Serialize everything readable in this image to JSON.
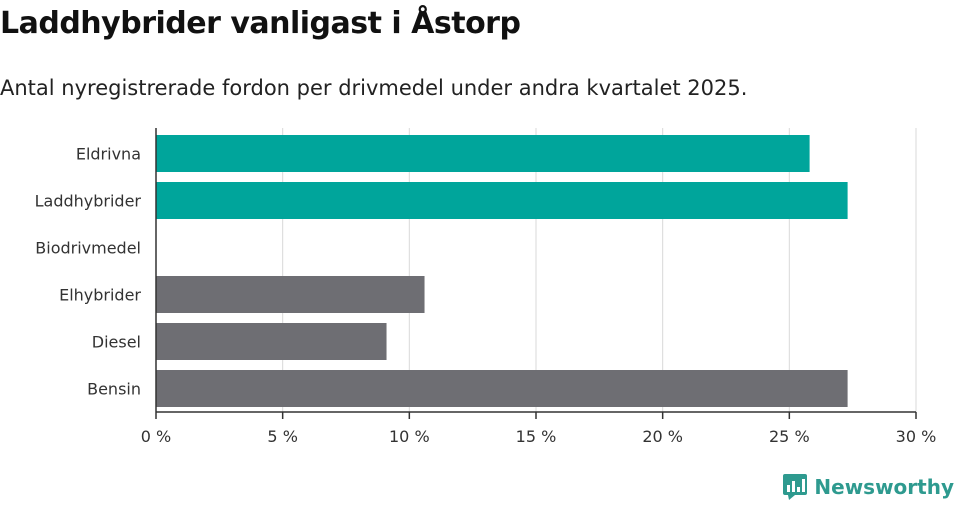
{
  "header": {
    "title": "Laddhybrider vanligast i Åstorp",
    "subtitle": "Antal nyregistrerade fordon per drivmedel under andra kvartalet 2025."
  },
  "brand": {
    "name": "Newsworthy"
  },
  "colors": {
    "highlight": "#00a59b",
    "default": "#6e6e73",
    "grid": "#d9d9d9",
    "axis": "#333333"
  },
  "chart_data": {
    "type": "bar",
    "orientation": "horizontal",
    "categories": [
      "Eldrivna",
      "Laddhybrider",
      "Biodrivmedel",
      "Elhybrider",
      "Diesel",
      "Bensin"
    ],
    "values": [
      25.8,
      27.3,
      0,
      10.6,
      9.1,
      27.3
    ],
    "highlighted": [
      true,
      true,
      false,
      false,
      false,
      false
    ],
    "xlim": [
      0,
      30
    ],
    "xticks": [
      0,
      5,
      10,
      15,
      20,
      25,
      30
    ],
    "xtick_labels": [
      "0 %",
      "5 %",
      "10 %",
      "15 %",
      "20 %",
      "25 %",
      "30 %"
    ],
    "grid": true
  }
}
